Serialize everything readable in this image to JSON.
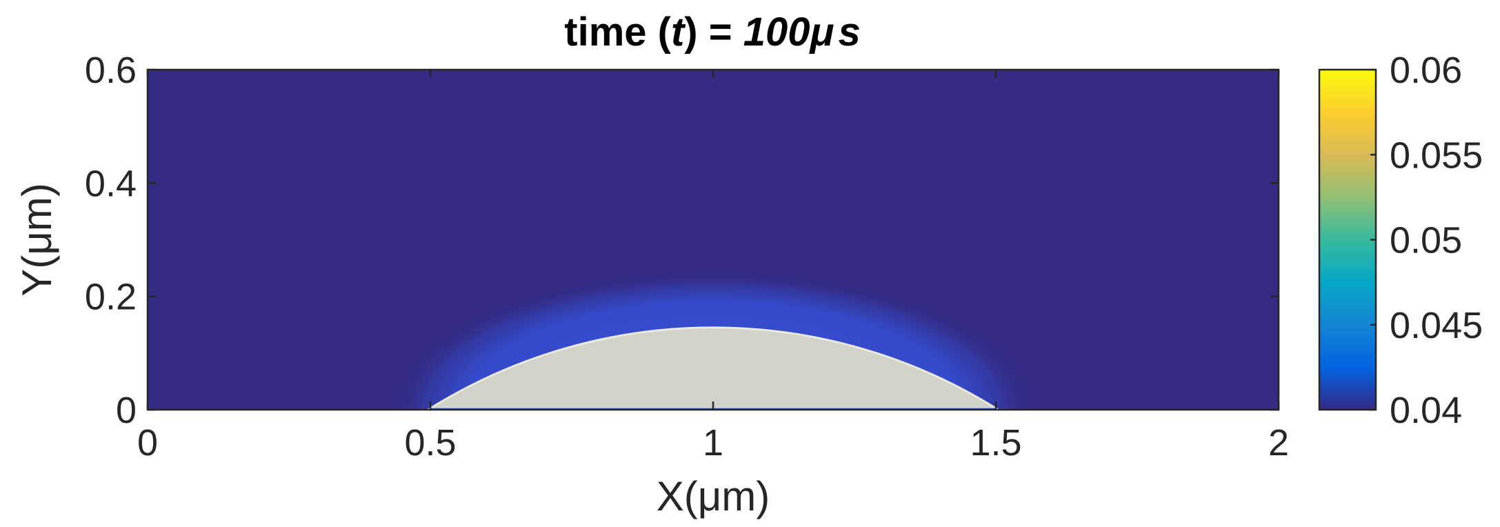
{
  "chart_data": {
    "type": "heatmap",
    "title": {
      "prefix": "time (",
      "variable": "t",
      "middle": ") = ",
      "value": "100",
      "unit_mu": "μ",
      "unit_s": "s"
    },
    "xlabel": "X(μm)",
    "ylabel": "Y(μm)",
    "xlim": [
      0,
      2
    ],
    "ylim": [
      0,
      0.6
    ],
    "x_ticks": [
      0,
      0.5,
      1,
      1.5,
      2
    ],
    "x_tick_labels": [
      "0",
      "0.5",
      "1",
      "1.5",
      "2"
    ],
    "y_ticks": [
      0,
      0.2,
      0.4,
      0.6
    ],
    "y_tick_labels": [
      "0",
      "0.2",
      "0.4",
      "0.6"
    ],
    "colorbar": {
      "limits": [
        0.04,
        0.06
      ],
      "ticks": [
        0.04,
        0.045,
        0.05,
        0.055,
        0.06
      ],
      "tick_labels": [
        "0.04",
        "0.045",
        "0.05",
        "0.055",
        "0.06"
      ],
      "colormap": "parula",
      "colors": [
        "#352a87",
        "#0363e1",
        "#1485d4",
        "#06a7c6",
        "#38b99e",
        "#92bf73",
        "#d9ba56",
        "#fcce2e",
        "#f9fb0e"
      ]
    },
    "field": {
      "background_value": 0.0405,
      "peak_value": 0.0425,
      "color_background": "#332b84",
      "color_halo": "#3550d6"
    },
    "particle": {
      "shape": "circular-cap",
      "x_left": 0.5,
      "x_right": 1.5,
      "apex_x": 1.0,
      "apex_y": 0.145,
      "fill": "#d3d2c8",
      "edge": "#e9e9e2"
    },
    "grid": false,
    "legend": "none"
  }
}
